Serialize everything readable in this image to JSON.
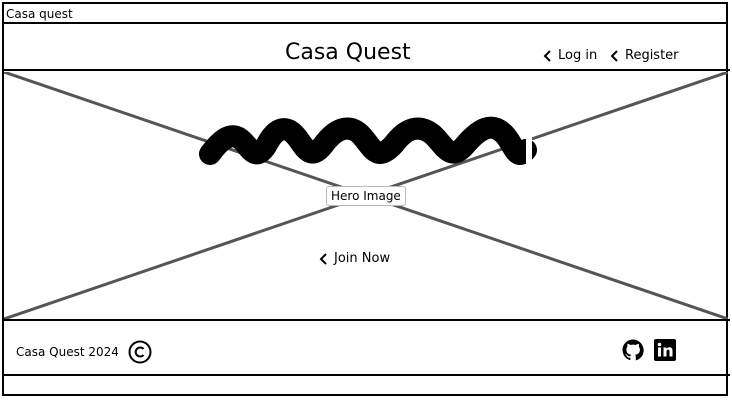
{
  "window": {
    "title": "Casa quest"
  },
  "header": {
    "brand": "Casa Quest",
    "nav": [
      {
        "label": "Log in",
        "icon": "chevron-left-icon"
      },
      {
        "label": "Register",
        "icon": "chevron-left-icon"
      }
    ]
  },
  "hero": {
    "label": "Hero Image",
    "cta_label": "Join Now",
    "cta_icon": "chevron-left-icon"
  },
  "footer": {
    "copyright_text": "Casa Quest 2024",
    "icons": [
      "copyright-icon",
      "github-icon",
      "linkedin-icon"
    ]
  }
}
